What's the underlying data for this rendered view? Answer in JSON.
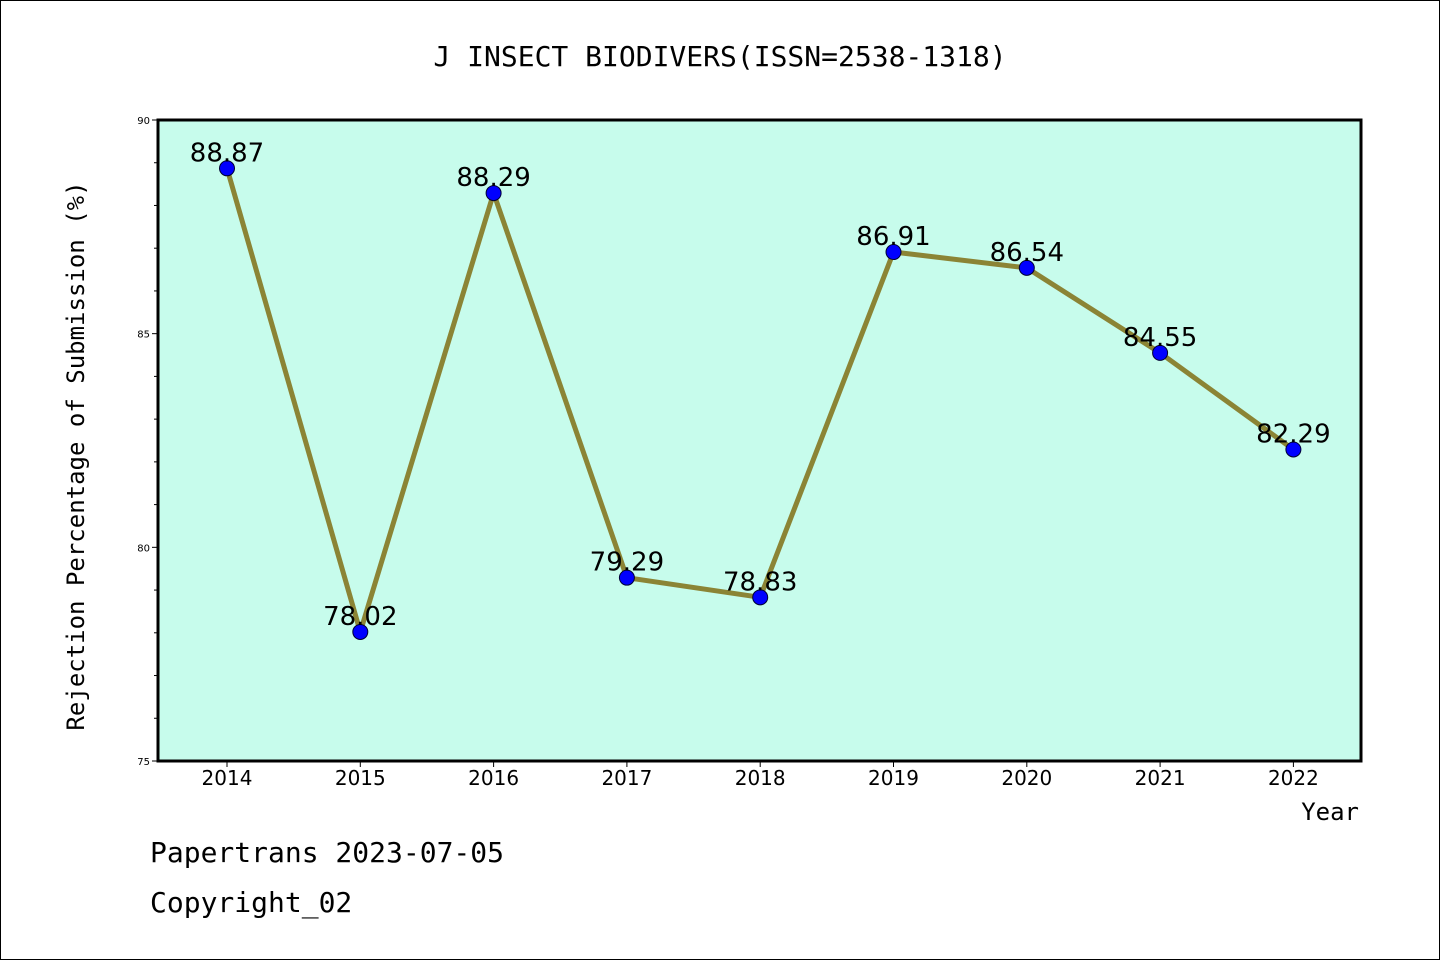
{
  "chart_data": {
    "type": "line",
    "title": "J INSECT BIODIVERS(ISSN=2538-1318)",
    "xlabel": "Year",
    "ylabel": "Rejection Percentage of Submission (%)",
    "categories": [
      "2014",
      "2015",
      "2016",
      "2017",
      "2018",
      "2019",
      "2020",
      "2021",
      "2022"
    ],
    "values": [
      88.87,
      78.02,
      88.29,
      79.29,
      78.83,
      86.91,
      86.54,
      84.55,
      82.29
    ],
    "data_labels": [
      "88.87",
      "78.02",
      "88.29",
      "79.29",
      "78.83",
      "86.91",
      "86.54",
      "84.55",
      "82.29"
    ],
    "ylim": [
      75,
      90
    ],
    "yticks": [
      "75",
      "80",
      "85",
      "90"
    ],
    "grid": false,
    "legend": "none",
    "colors": {
      "plot_background": "#c7fcec",
      "line": "#8b8435",
      "marker": "#0000ff"
    }
  },
  "footer": {
    "line1": "Papertrans 2023-07-05",
    "line2": "Copyright_02"
  }
}
